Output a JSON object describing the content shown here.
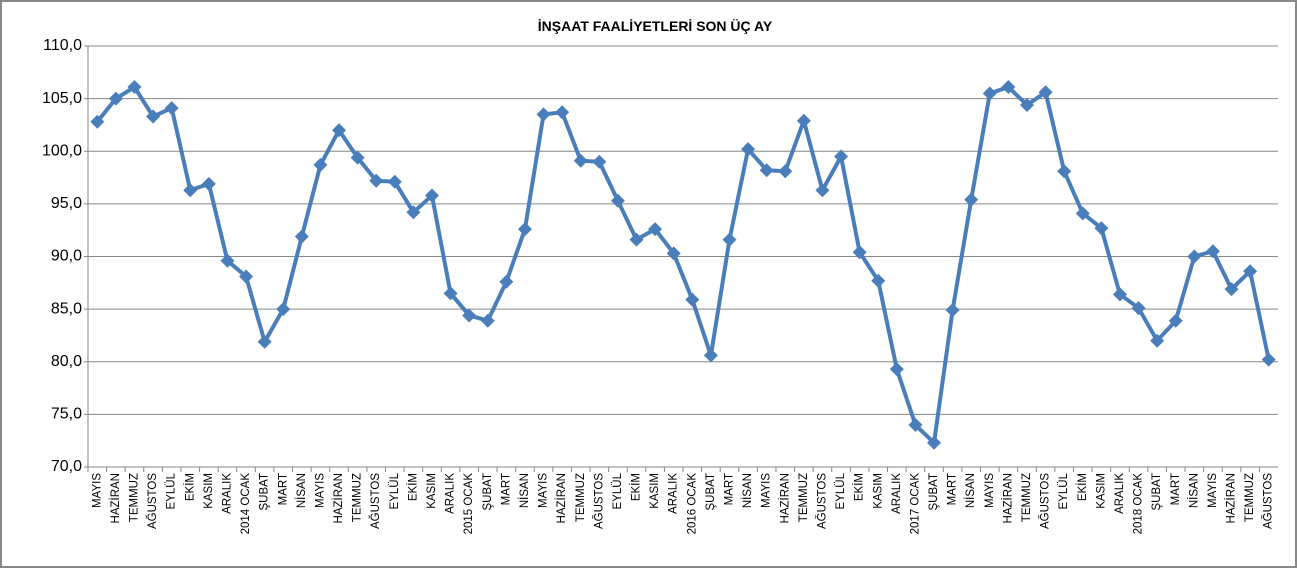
{
  "chart_data": {
    "type": "line",
    "title": "İNŞAAT FAALİYETLERİ SON ÜÇ AY",
    "categories": [
      "MAYIS",
      "HAZİRAN",
      "TEMMUZ",
      "AĞUSTOS",
      "EYLÜL",
      "EKİM",
      "KASIM",
      "ARALIK",
      "2014 OCAK",
      "ŞUBAT",
      "MART",
      "NİSAN",
      "MAYIS",
      "HAZİRAN",
      "TEMMUZ",
      "AĞUSTOS",
      "EYLÜL",
      "EKİM",
      "KASIM",
      "ARALIK",
      "2015 OCAK",
      "ŞUBAT",
      "MART",
      "NİSAN",
      "MAYIS",
      "HAZİRAN",
      "TEMMUZ",
      "AĞUSTOS",
      "EYLÜL",
      "EKİM",
      "KASIM",
      "ARALIK",
      "2016 OCAK",
      "ŞUBAT",
      "MART",
      "NİSAN",
      "MAYIS",
      "HAZİRAN",
      "TEMMUZ",
      "AĞUSTOS",
      "EYLÜL",
      "EKİM",
      "KASIM",
      "ARALIK",
      "2017 OCAK",
      "ŞUBAT",
      "MART",
      "NİSAN",
      "MAYIS",
      "HAZİRAN",
      "TEMMUZ",
      "AĞUSTOS",
      "EYLÜL",
      "EKİM",
      "KASIM",
      "ARALIK",
      "2018 OCAK",
      "ŞUBAT",
      "MART",
      "NİSAN",
      "MAYIS",
      "HAZİRAN",
      "TEMMUZ",
      "AĞUSTOS"
    ],
    "values": [
      102.8,
      105.0,
      106.1,
      103.3,
      104.1,
      96.3,
      96.9,
      89.6,
      88.1,
      81.9,
      85.0,
      91.9,
      98.7,
      102.0,
      99.4,
      97.2,
      97.1,
      94.2,
      95.8,
      86.5,
      84.4,
      83.9,
      87.6,
      92.6,
      103.5,
      103.7,
      99.1,
      99.0,
      95.3,
      91.6,
      92.6,
      90.3,
      85.9,
      80.6,
      91.6,
      100.2,
      98.2,
      98.1,
      102.9,
      96.3,
      99.5,
      90.4,
      87.7,
      79.3,
      74.0,
      72.3,
      84.9,
      95.4,
      105.5,
      106.1,
      104.4,
      105.6,
      98.1,
      94.1,
      92.7,
      86.4,
      85.1,
      82.0,
      83.9,
      90.0,
      90.5,
      86.9,
      88.6,
      80.2
    ],
    "color": "#4a7ebb",
    "ylim": [
      70,
      110
    ],
    "yticks": [
      {
        "value": 70,
        "label": "70,0"
      },
      {
        "value": 75,
        "label": "75,0"
      },
      {
        "value": 80,
        "label": "80,0"
      },
      {
        "value": 85,
        "label": "85,0"
      },
      {
        "value": 90,
        "label": "90,0"
      },
      {
        "value": 95,
        "label": "95,0"
      },
      {
        "value": 100,
        "label": "100,0"
      },
      {
        "value": 105,
        "label": "105,0"
      },
      {
        "value": 110,
        "label": "110,0"
      }
    ],
    "grid": true
  }
}
